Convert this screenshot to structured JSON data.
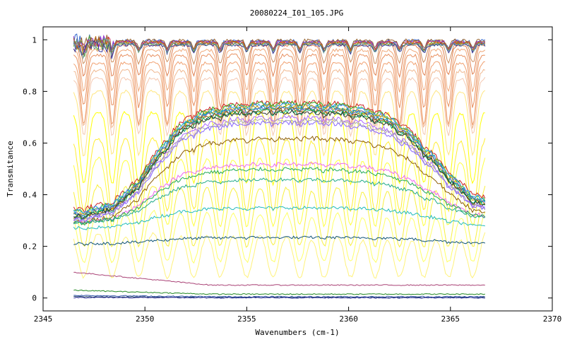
{
  "chart_data": {
    "type": "line",
    "title": "20080224_I01_105.JPG",
    "xlabel": "Wavenumbers (cm-1)",
    "ylabel": "Transmitance",
    "xlim": [
      2345,
      2370
    ],
    "ylim": [
      -0.05,
      1.05
    ],
    "xticks": [
      2345,
      2350,
      2355,
      2360,
      2365,
      2370
    ],
    "xtick_labels": [
      "2345",
      "2350",
      "2355",
      "2360",
      "2365",
      "2370"
    ],
    "yticks": [
      0,
      0.2,
      0.4,
      0.6,
      0.8,
      1
    ],
    "ytick_labels": [
      "0",
      "0.2",
      "0.4",
      "0.6",
      "0.8",
      "1"
    ],
    "grid": false,
    "legend": "none",
    "x_range_data": [
      2346.5,
      2366.7
    ],
    "absorption_line_centers": [
      2347.0,
      2348.4,
      2349.7,
      2351.1,
      2352.4,
      2353.7,
      2355.0,
      2356.3,
      2357.6,
      2358.8,
      2360.1,
      2361.3,
      2362.5,
      2363.7,
      2364.9,
      2366.1
    ],
    "series": [
      {
        "kind": "saturated",
        "color": "#fff27a",
        "level": 0.28,
        "depth": 0.2
      },
      {
        "kind": "saturated",
        "color": "#ffff66",
        "level": 0.36,
        "depth": 0.22
      },
      {
        "kind": "saturated",
        "color": "#f8f040",
        "level": 0.45,
        "depth": 0.25
      },
      {
        "kind": "saturated",
        "color": "#ffff40",
        "level": 0.55,
        "depth": 0.27
      },
      {
        "kind": "saturated",
        "color": "#ffee33",
        "level": 0.62,
        "depth": 0.28
      },
      {
        "kind": "saturated",
        "color": "#ffff00",
        "level": 0.72,
        "depth": 0.28
      },
      {
        "kind": "saturated",
        "color": "#ffe680",
        "level": 0.8,
        "depth": 0.25
      },
      {
        "kind": "saturated",
        "color": "#f5c8b0",
        "level": 0.85,
        "depth": 0.22
      },
      {
        "kind": "saturated",
        "color": "#f0b890",
        "level": 0.88,
        "depth": 0.22
      },
      {
        "kind": "saturated",
        "color": "#f0a070",
        "level": 0.91,
        "depth": 0.24
      },
      {
        "kind": "saturated",
        "color": "#e89060",
        "level": 0.94,
        "depth": 0.2
      },
      {
        "kind": "saturated",
        "color": "#f0a878",
        "level": 0.96,
        "depth": 0.16
      },
      {
        "kind": "saturated",
        "color": "#e08050",
        "level": 0.98,
        "depth": 0.12
      },
      {
        "kind": "saturated",
        "color": "#d09060",
        "level": 0.99,
        "depth": 0.08
      },
      {
        "kind": "top",
        "color": "#3366cc",
        "level": 0.995
      },
      {
        "kind": "top",
        "color": "#cc3366",
        "level": 0.99
      },
      {
        "kind": "top",
        "color": "#66aa33",
        "level": 0.985
      },
      {
        "kind": "top",
        "color": "#9933cc",
        "level": 0.992
      },
      {
        "kind": "top",
        "color": "#cc6600",
        "level": 0.988
      },
      {
        "kind": "top",
        "color": "#333399",
        "level": 0.98
      },
      {
        "kind": "top",
        "color": "#996633",
        "level": 0.997
      },
      {
        "kind": "top",
        "color": "#669999",
        "level": 0.983
      },
      {
        "kind": "band",
        "color": "#cc2222",
        "peak": 0.76,
        "start": 0.34
      },
      {
        "kind": "band",
        "color": "#33bb33",
        "peak": 0.755,
        "start": 0.33
      },
      {
        "kind": "band",
        "color": "#3399ff",
        "peak": 0.75,
        "start": 0.33
      },
      {
        "kind": "band",
        "color": "#cc9900",
        "peak": 0.745,
        "start": 0.32
      },
      {
        "kind": "band",
        "color": "#009999",
        "peak": 0.74,
        "start": 0.32
      },
      {
        "kind": "band",
        "color": "#6666cc",
        "peak": 0.735,
        "start": 0.32
      },
      {
        "kind": "band",
        "color": "#996600",
        "peak": 0.73,
        "start": 0.31
      },
      {
        "kind": "band",
        "color": "#00aa66",
        "peak": 0.725,
        "start": 0.31
      },
      {
        "kind": "band",
        "color": "#333333",
        "peak": 0.72,
        "start": 0.31
      },
      {
        "kind": "band",
        "color": "#aa66ff",
        "peak": 0.7,
        "start": 0.3
      },
      {
        "kind": "band",
        "color": "#aaaaaa",
        "peak": 0.69,
        "start": 0.3
      },
      {
        "kind": "band",
        "color": "#8866ff",
        "peak": 0.68,
        "start": 0.3
      },
      {
        "kind": "band",
        "color": "#8b5a00",
        "peak": 0.62,
        "start": 0.29
      },
      {
        "kind": "band",
        "color": "#ee66ee",
        "peak": 0.52,
        "start": 0.29
      },
      {
        "kind": "band",
        "color": "#22aa55",
        "peak": 0.5,
        "start": 0.29
      },
      {
        "kind": "band",
        "color": "#22aa88",
        "peak": 0.46,
        "start": 0.29
      },
      {
        "kind": "band",
        "color": "#22bbbb",
        "peak": 0.35,
        "start": 0.27
      },
      {
        "kind": "band",
        "color": "#115577",
        "peak": 0.235,
        "start": 0.21
      },
      {
        "kind": "flat",
        "color": "#aa4477",
        "start": 0.1,
        "end": 0.05
      },
      {
        "kind": "flat",
        "color": "#228822",
        "start": 0.03,
        "end": 0.015
      },
      {
        "kind": "flat",
        "color": "#3355aa",
        "start": 0.01,
        "end": 0.005
      },
      {
        "kind": "flat",
        "color": "#224466",
        "start": 0.005,
        "end": 0.002
      },
      {
        "kind": "flat",
        "color": "#333399",
        "start": 0.002,
        "end": 0.001
      }
    ]
  }
}
